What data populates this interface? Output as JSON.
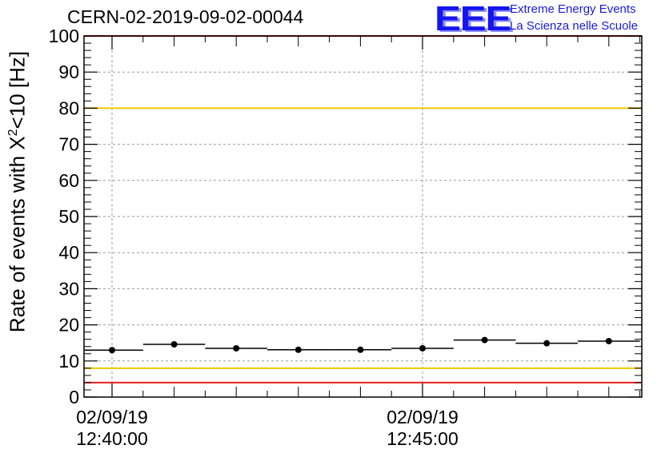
{
  "header": {
    "title": "CERN-02-2019-09-02-00044",
    "logo_text": "EEE",
    "org_line1": "Extreme Energy Events",
    "org_line2": "La Scienza nelle Scuole"
  },
  "colors": {
    "red_line": "#e8211a",
    "yellow_line": "#f0c800",
    "grid": "#9a9a9a",
    "marker": "#000000",
    "logo": "#1515ee"
  },
  "chart_data": {
    "type": "scatter",
    "title": "CERN-02-2019-09-02-00044",
    "ylabel_prefix": "Rate of events with X",
    "ylabel_sup": "2",
    "ylabel_suffix": "<10 [Hz]",
    "xlabel": "",
    "ylim": [
      0,
      100
    ],
    "yticks": [
      "0",
      "10",
      "20",
      "30",
      "40",
      "50",
      "60",
      "70",
      "80",
      "90",
      "100"
    ],
    "xticks": [
      {
        "time": "12:40:00",
        "date": "02/09/19"
      },
      {
        "time": "12:45:00",
        "date": "02/09/19"
      }
    ],
    "grid": true,
    "series": [
      {
        "points": [
          {
            "t": "12:40:00",
            "y": 13.0
          },
          {
            "t": "12:41:00",
            "y": 14.6
          },
          {
            "t": "12:42:00",
            "y": 13.5
          },
          {
            "t": "12:43:00",
            "y": 13.1
          },
          {
            "t": "12:44:00",
            "y": 13.1
          },
          {
            "t": "12:45:00",
            "y": 13.5
          },
          {
            "t": "12:46:00",
            "y": 15.8
          },
          {
            "t": "12:47:00",
            "y": 14.9
          },
          {
            "t": "12:48:00",
            "y": 15.5
          }
        ]
      }
    ],
    "reference_lines": [
      {
        "y": 100,
        "color": "red"
      },
      {
        "y": 80,
        "color": "yellow"
      },
      {
        "y": 8,
        "color": "yellow"
      },
      {
        "y": 4,
        "color": "red"
      }
    ]
  }
}
